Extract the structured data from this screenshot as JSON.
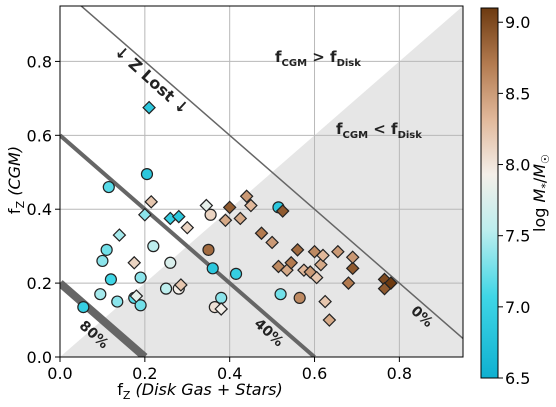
{
  "chart_data": {
    "type": "scatter",
    "xlabel_prefix": "f",
    "xlabel_sub": "Z",
    "xlabel_paren": "(Disk Gas + Stars)",
    "ylabel_prefix": "f",
    "ylabel_sub": "Z",
    "ylabel_paren": "(CGM)",
    "xlim": [
      0.0,
      0.95
    ],
    "ylim": [
      0.0,
      0.95
    ],
    "xticks": [
      "0.0",
      "0.2",
      "0.4",
      "0.6",
      "0.8"
    ],
    "yticks": [
      "0.0",
      "0.2",
      "0.4",
      "0.6",
      "0.8"
    ],
    "grid": true,
    "colorbar": {
      "label": "log M*/M☉",
      "range": [
        6.5,
        9.1
      ],
      "ticks": [
        "6.5",
        "7.0",
        "7.5",
        "8.0",
        "8.5",
        "9.0"
      ],
      "low_color": "#1aa6c9",
      "mid_color": "#f5f5f5",
      "high_color": "#7a3f12"
    },
    "annotations": {
      "z_lost": "↓ Z Lost ↓",
      "cgm_gt_disk": "f_CGM > f_Disk",
      "cgm_lt_disk": "f_CGM < f_Disk",
      "line_0": "0%",
      "line_40": "40%",
      "line_80": "80%"
    },
    "circles": [
      {
        "x": 0.055,
        "y": 0.135,
        "m": 6.9
      },
      {
        "x": 0.1,
        "y": 0.26,
        "m": 7.3
      },
      {
        "x": 0.115,
        "y": 0.46,
        "m": 7.1
      },
      {
        "x": 0.095,
        "y": 0.17,
        "m": 7.4
      },
      {
        "x": 0.135,
        "y": 0.15,
        "m": 7.3
      },
      {
        "x": 0.11,
        "y": 0.29,
        "m": 7.2
      },
      {
        "x": 0.12,
        "y": 0.21,
        "m": 7.0
      },
      {
        "x": 0.175,
        "y": 0.16,
        "m": 7.1
      },
      {
        "x": 0.19,
        "y": 0.14,
        "m": 7.2
      },
      {
        "x": 0.19,
        "y": 0.215,
        "m": 7.3
      },
      {
        "x": 0.205,
        "y": 0.495,
        "m": 6.8
      },
      {
        "x": 0.22,
        "y": 0.3,
        "m": 7.5
      },
      {
        "x": 0.25,
        "y": 0.185,
        "m": 7.5
      },
      {
        "x": 0.26,
        "y": 0.255,
        "m": 7.7
      },
      {
        "x": 0.28,
        "y": 0.185,
        "m": 7.9
      },
      {
        "x": 0.35,
        "y": 0.29,
        "m": 8.8
      },
      {
        "x": 0.355,
        "y": 0.385,
        "m": 8.1
      },
      {
        "x": 0.36,
        "y": 0.24,
        "m": 6.8
      },
      {
        "x": 0.365,
        "y": 0.135,
        "m": 8.0
      },
      {
        "x": 0.38,
        "y": 0.16,
        "m": 7.3
      },
      {
        "x": 0.415,
        "y": 0.225,
        "m": 6.9
      },
      {
        "x": 0.515,
        "y": 0.405,
        "m": 6.8
      },
      {
        "x": 0.52,
        "y": 0.17,
        "m": 7.2
      },
      {
        "x": 0.565,
        "y": 0.16,
        "m": 8.6
      }
    ],
    "diamonds": [
      {
        "x": 0.14,
        "y": 0.33,
        "m": 7.4
      },
      {
        "x": 0.175,
        "y": 0.255,
        "m": 8.1
      },
      {
        "x": 0.18,
        "y": 0.165,
        "m": 7.8
      },
      {
        "x": 0.2,
        "y": 0.385,
        "m": 7.3
      },
      {
        "x": 0.21,
        "y": 0.675,
        "m": 6.8
      },
      {
        "x": 0.215,
        "y": 0.42,
        "m": 8.2
      },
      {
        "x": 0.26,
        "y": 0.375,
        "m": 6.9
      },
      {
        "x": 0.28,
        "y": 0.38,
        "m": 6.8
      },
      {
        "x": 0.285,
        "y": 0.195,
        "m": 8.2
      },
      {
        "x": 0.3,
        "y": 0.35,
        "m": 8.1
      },
      {
        "x": 0.345,
        "y": 0.41,
        "m": 7.8
      },
      {
        "x": 0.38,
        "y": 0.13,
        "m": 7.9
      },
      {
        "x": 0.39,
        "y": 0.37,
        "m": 8.4
      },
      {
        "x": 0.4,
        "y": 0.405,
        "m": 8.9
      },
      {
        "x": 0.425,
        "y": 0.375,
        "m": 8.4
      },
      {
        "x": 0.44,
        "y": 0.435,
        "m": 8.5
      },
      {
        "x": 0.45,
        "y": 0.41,
        "m": 8.3
      },
      {
        "x": 0.475,
        "y": 0.335,
        "m": 8.7
      },
      {
        "x": 0.5,
        "y": 0.31,
        "m": 8.5
      },
      {
        "x": 0.515,
        "y": 0.245,
        "m": 8.6
      },
      {
        "x": 0.525,
        "y": 0.395,
        "m": 8.9
      },
      {
        "x": 0.535,
        "y": 0.235,
        "m": 8.4
      },
      {
        "x": 0.545,
        "y": 0.255,
        "m": 8.7
      },
      {
        "x": 0.56,
        "y": 0.29,
        "m": 8.8
      },
      {
        "x": 0.575,
        "y": 0.235,
        "m": 8.3
      },
      {
        "x": 0.59,
        "y": 0.23,
        "m": 8.5
      },
      {
        "x": 0.6,
        "y": 0.285,
        "m": 8.6
      },
      {
        "x": 0.605,
        "y": 0.215,
        "m": 8.2
      },
      {
        "x": 0.615,
        "y": 0.25,
        "m": 8.4
      },
      {
        "x": 0.62,
        "y": 0.275,
        "m": 8.3
      },
      {
        "x": 0.625,
        "y": 0.15,
        "m": 8.2
      },
      {
        "x": 0.635,
        "y": 0.1,
        "m": 8.4
      },
      {
        "x": 0.655,
        "y": 0.285,
        "m": 8.5
      },
      {
        "x": 0.68,
        "y": 0.2,
        "m": 8.7
      },
      {
        "x": 0.69,
        "y": 0.24,
        "m": 8.9
      },
      {
        "x": 0.69,
        "y": 0.27,
        "m": 8.5
      },
      {
        "x": 0.765,
        "y": 0.21,
        "m": 9.0
      },
      {
        "x": 0.765,
        "y": 0.185,
        "m": 8.9
      },
      {
        "x": 0.78,
        "y": 0.2,
        "m": 9.1
      }
    ]
  }
}
